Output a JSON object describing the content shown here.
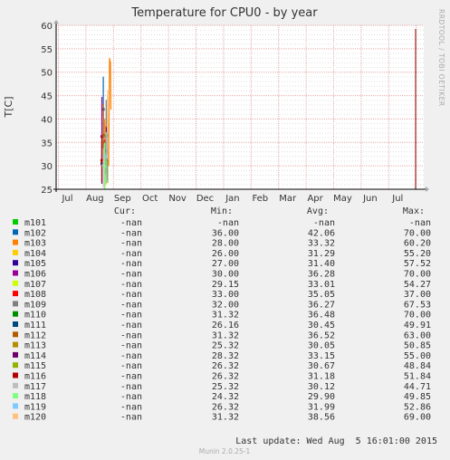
{
  "chart_data": {
    "type": "line",
    "title": "Temperature for CPU0 - by year",
    "ylabel": "T[C]",
    "watermark": "RRDTOOL / TOBI OETIKER",
    "ylim": [
      25,
      60
    ],
    "yticks": [
      25,
      30,
      35,
      40,
      45,
      50,
      55,
      60
    ],
    "months": [
      "Jul",
      "Aug",
      "Sep",
      "Oct",
      "Nov",
      "Dec",
      "Jan",
      "Feb",
      "Mar",
      "Apr",
      "May",
      "Jun",
      "Jul"
    ],
    "headers": {
      "cur": "Cur:",
      "min": "Min:",
      "avg": "Avg:",
      "max": "Max:"
    },
    "series": [
      {
        "name": "m101",
        "color": "#00CC00",
        "cur": "-nan",
        "min": "-nan",
        "avg": "-nan",
        "max": "-nan"
      },
      {
        "name": "m102",
        "color": "#0066B3",
        "cur": "-nan",
        "min": "36.00",
        "avg": "42.06",
        "max": "70.00"
      },
      {
        "name": "m103",
        "color": "#FF8000",
        "cur": "-nan",
        "min": "28.00",
        "avg": "33.32",
        "max": "60.20"
      },
      {
        "name": "m104",
        "color": "#FFCC00",
        "cur": "-nan",
        "min": "26.00",
        "avg": "31.29",
        "max": "55.20"
      },
      {
        "name": "m105",
        "color": "#330099",
        "cur": "-nan",
        "min": "27.00",
        "avg": "31.40",
        "max": "57.52"
      },
      {
        "name": "m106",
        "color": "#990099",
        "cur": "-nan",
        "min": "30.00",
        "avg": "36.28",
        "max": "70.00"
      },
      {
        "name": "m107",
        "color": "#CCFF00",
        "cur": "-nan",
        "min": "29.15",
        "avg": "33.01",
        "max": "54.27"
      },
      {
        "name": "m108",
        "color": "#FF0000",
        "cur": "-nan",
        "min": "33.00",
        "avg": "35.05",
        "max": "37.00"
      },
      {
        "name": "m109",
        "color": "#808080",
        "cur": "-nan",
        "min": "32.00",
        "avg": "36.27",
        "max": "67.53"
      },
      {
        "name": "m110",
        "color": "#008F00",
        "cur": "-nan",
        "min": "31.32",
        "avg": "36.48",
        "max": "70.00"
      },
      {
        "name": "m111",
        "color": "#00487D",
        "cur": "-nan",
        "min": "26.16",
        "avg": "30.45",
        "max": "49.91"
      },
      {
        "name": "m112",
        "color": "#B35A00",
        "cur": "-nan",
        "min": "31.32",
        "avg": "36.52",
        "max": "63.00"
      },
      {
        "name": "m113",
        "color": "#B38F00",
        "cur": "-nan",
        "min": "25.32",
        "avg": "30.05",
        "max": "50.85"
      },
      {
        "name": "m114",
        "color": "#6B006B",
        "cur": "-nan",
        "min": "28.32",
        "avg": "33.15",
        "max": "55.00"
      },
      {
        "name": "m115",
        "color": "#8FB300",
        "cur": "-nan",
        "min": "26.32",
        "avg": "30.67",
        "max": "48.84"
      },
      {
        "name": "m116",
        "color": "#B30000",
        "cur": "-nan",
        "min": "26.32",
        "avg": "31.18",
        "max": "51.84"
      },
      {
        "name": "m117",
        "color": "#BEBEBE",
        "cur": "-nan",
        "min": "25.32",
        "avg": "30.12",
        "max": "44.71"
      },
      {
        "name": "m118",
        "color": "#80FF80",
        "cur": "-nan",
        "min": "24.32",
        "avg": "29.90",
        "max": "49.85"
      },
      {
        "name": "m119",
        "color": "#80C9FF",
        "cur": "-nan",
        "min": "26.32",
        "avg": "31.99",
        "max": "52.86"
      },
      {
        "name": "m120",
        "color": "#FFC080",
        "cur": "-nan",
        "min": "31.32",
        "avg": "38.56",
        "max": "69.00"
      }
    ],
    "last_update": "Last update: Wed Aug  5 16:01:00 2015",
    "footer": "Munin 2.0.25-1"
  }
}
